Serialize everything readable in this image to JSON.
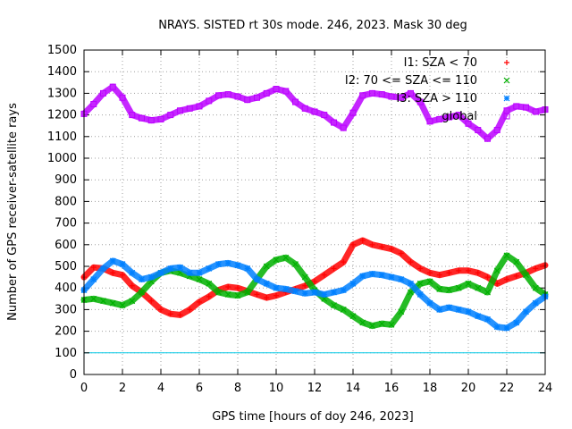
{
  "chart_data": {
    "type": "scatter",
    "title": "NRAYS. SISTED rt 30s mode. 246, 2023. Mask 30 deg",
    "xlabel": "GPS time [hours of doy 246, 2023]",
    "ylabel": "Number of GPS receiver-satellite rays",
    "xlim": [
      0,
      24
    ],
    "ylim": [
      0,
      1500
    ],
    "x_ticks": [
      "0",
      "2",
      "4",
      "6",
      "8",
      "10",
      "12",
      "14",
      "16",
      "18",
      "20",
      "22",
      "24"
    ],
    "y_ticks": [
      "0",
      "100",
      "200",
      "300",
      "400",
      "500",
      "600",
      "700",
      "800",
      "900",
      "1000",
      "1100",
      "1200",
      "1300",
      "1400",
      "1500"
    ],
    "grid": true,
    "legend_position": "top-right",
    "threshold_line": {
      "y": 100,
      "color": "#00c8e6"
    },
    "series": [
      {
        "name": "I1: SZA < 70",
        "marker": "+",
        "color": "#ff0000",
        "x": [
          0.0,
          0.5,
          1.0,
          1.5,
          2.0,
          2.5,
          3.0,
          3.5,
          4.0,
          4.5,
          5.0,
          5.5,
          6.0,
          6.5,
          7.0,
          7.5,
          8.0,
          8.5,
          9.0,
          9.5,
          10.0,
          10.5,
          11.0,
          11.5,
          12.0,
          12.5,
          13.0,
          13.5,
          14.0,
          14.5,
          15.0,
          15.5,
          16.0,
          16.5,
          17.0,
          17.5,
          18.0,
          18.5,
          19.0,
          19.5,
          20.0,
          20.5,
          21.0,
          21.5,
          22.0,
          22.5,
          23.0,
          23.5,
          24.0
        ],
        "values": [
          450,
          495,
          490,
          470,
          460,
          410,
          380,
          340,
          300,
          280,
          275,
          300,
          335,
          360,
          390,
          405,
          400,
          385,
          370,
          355,
          365,
          380,
          395,
          410,
          430,
          460,
          490,
          520,
          600,
          620,
          600,
          590,
          580,
          560,
          520,
          490,
          470,
          460,
          470,
          480,
          480,
          470,
          450,
          420,
          440,
          455,
          470,
          490,
          505
        ]
      },
      {
        "name": "I2: 70 <= SZA <= 110",
        "marker": "x",
        "color": "#00b000",
        "x": [
          0.0,
          0.5,
          1.0,
          1.5,
          2.0,
          2.5,
          3.0,
          3.5,
          4.0,
          4.5,
          5.0,
          5.5,
          6.0,
          6.5,
          7.0,
          7.5,
          8.0,
          8.5,
          9.0,
          9.5,
          10.0,
          10.5,
          11.0,
          11.5,
          12.0,
          12.5,
          13.0,
          13.5,
          14.0,
          14.5,
          15.0,
          15.5,
          16.0,
          16.5,
          17.0,
          17.5,
          18.0,
          18.5,
          19.0,
          19.5,
          20.0,
          20.5,
          21.0,
          21.5,
          22.0,
          22.5,
          23.0,
          23.5,
          24.0
        ],
        "values": [
          345,
          350,
          340,
          330,
          320,
          340,
          380,
          430,
          470,
          480,
          470,
          455,
          440,
          420,
          380,
          370,
          365,
          380,
          440,
          500,
          530,
          540,
          510,
          450,
          390,
          350,
          320,
          300,
          270,
          240,
          225,
          235,
          230,
          290,
          380,
          420,
          430,
          395,
          390,
          400,
          420,
          400,
          380,
          480,
          550,
          520,
          460,
          400,
          370
        ]
      },
      {
        "name": "I3: SZA > 110",
        "marker": "*",
        "color": "#0080ff",
        "x": [
          0.0,
          0.5,
          1.0,
          1.5,
          2.0,
          2.5,
          3.0,
          3.5,
          4.0,
          4.5,
          5.0,
          5.5,
          6.0,
          6.5,
          7.0,
          7.5,
          8.0,
          8.5,
          9.0,
          9.5,
          10.0,
          10.5,
          11.0,
          11.5,
          12.0,
          12.5,
          13.0,
          13.5,
          14.0,
          14.5,
          15.0,
          15.5,
          16.0,
          16.5,
          17.0,
          17.5,
          18.0,
          18.5,
          19.0,
          19.5,
          20.0,
          20.5,
          21.0,
          21.5,
          22.0,
          22.5,
          23.0,
          23.5,
          24.0
        ],
        "values": [
          390,
          440,
          490,
          525,
          510,
          470,
          440,
          450,
          470,
          490,
          495,
          470,
          470,
          490,
          510,
          515,
          505,
          490,
          440,
          420,
          400,
          395,
          385,
          375,
          380,
          370,
          380,
          390,
          420,
          455,
          465,
          460,
          450,
          440,
          420,
          370,
          330,
          300,
          310,
          300,
          290,
          270,
          255,
          220,
          215,
          240,
          290,
          330,
          360
        ]
      },
      {
        "name": "global",
        "marker": "square",
        "color": "#bb00ff",
        "x": [
          0.0,
          0.5,
          1.0,
          1.5,
          2.0,
          2.5,
          3.0,
          3.5,
          4.0,
          4.5,
          5.0,
          5.5,
          6.0,
          6.5,
          7.0,
          7.5,
          8.0,
          8.5,
          9.0,
          9.5,
          10.0,
          10.5,
          11.0,
          11.5,
          12.0,
          12.5,
          13.0,
          13.5,
          14.0,
          14.5,
          15.0,
          15.5,
          16.0,
          16.5,
          17.0,
          17.5,
          18.0,
          18.5,
          19.0,
          19.5,
          20.0,
          20.5,
          21.0,
          21.5,
          22.0,
          22.5,
          23.0,
          23.5,
          24.0
        ],
        "values": [
          1205,
          1250,
          1300,
          1330,
          1280,
          1200,
          1185,
          1175,
          1180,
          1200,
          1220,
          1230,
          1240,
          1265,
          1290,
          1295,
          1285,
          1270,
          1280,
          1300,
          1320,
          1310,
          1260,
          1230,
          1215,
          1200,
          1165,
          1140,
          1210,
          1290,
          1300,
          1295,
          1285,
          1280,
          1300,
          1260,
          1170,
          1180,
          1190,
          1200,
          1160,
          1130,
          1090,
          1130,
          1220,
          1240,
          1235,
          1215,
          1225
        ]
      }
    ]
  }
}
